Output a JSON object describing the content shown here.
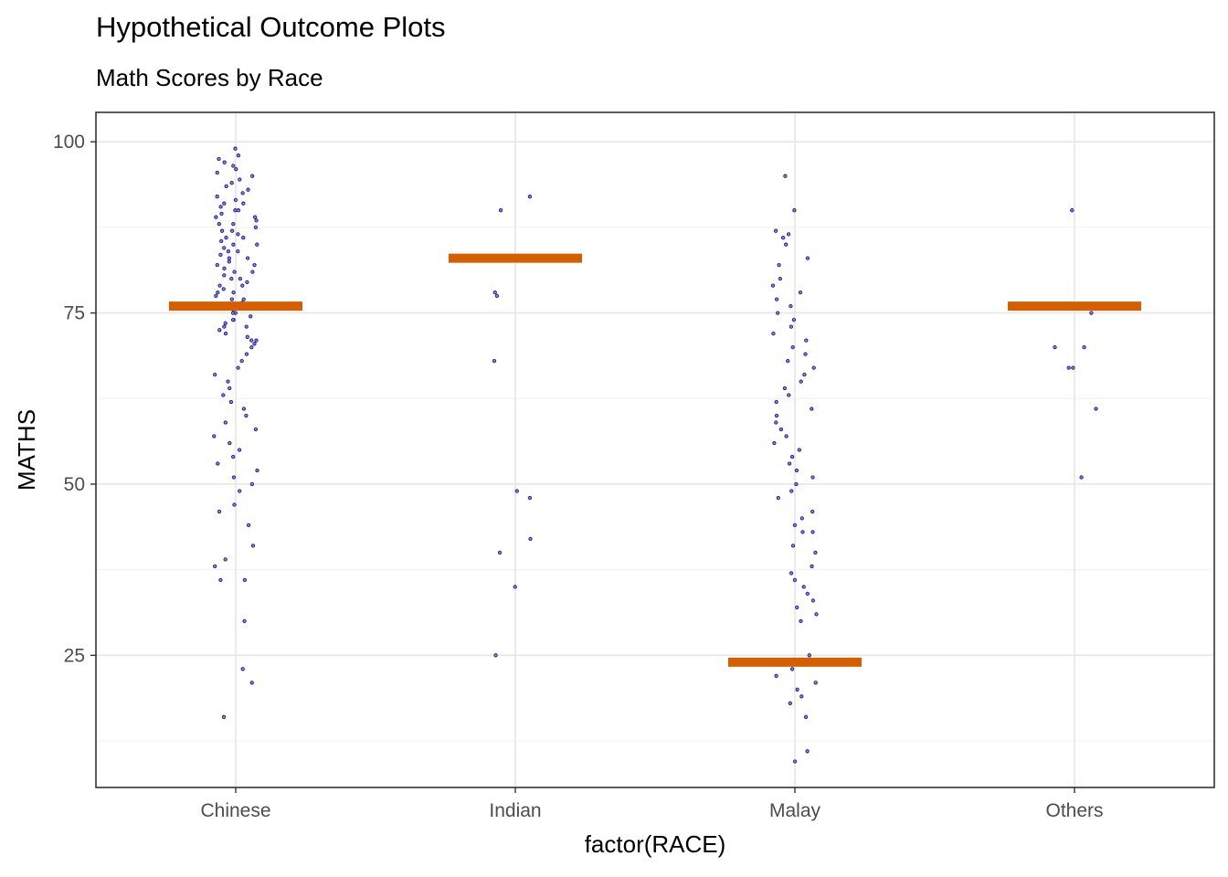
{
  "chart_data": {
    "type": "scatter",
    "title": "Hypothetical Outcome Plots",
    "subtitle": "Math Scores by Race",
    "xlabel": "factor(RACE)",
    "ylabel": "MATHS",
    "categories": [
      "Chinese",
      "Indian",
      "Malay",
      "Others"
    ],
    "ylim": [
      5.7,
      104.3
    ],
    "yticks": [
      25,
      50,
      75,
      100
    ],
    "grid": true,
    "legend": "none",
    "point_color": "#1a1a8c",
    "hop_color": "#d55e00",
    "hop_values": [
      76,
      83,
      24,
      76
    ],
    "points": {
      "Chinese": [
        99,
        98,
        97.5,
        97,
        96.5,
        96,
        95.5,
        95,
        94.5,
        94,
        93.5,
        93,
        92.5,
        92,
        91.5,
        91,
        91,
        90.5,
        90,
        90,
        89.5,
        89,
        89,
        88.5,
        88,
        88,
        87.5,
        87,
        87,
        86.5,
        86,
        86,
        85.5,
        85,
        85,
        84.5,
        84,
        84,
        83.5,
        83,
        83,
        82.5,
        82,
        82,
        81.5,
        81,
        81,
        80.5,
        80,
        80,
        79.5,
        79,
        79,
        78.5,
        78,
        78,
        77.5,
        77,
        77,
        76.5,
        76,
        76,
        75.5,
        75,
        75,
        74.5,
        74,
        74,
        73.5,
        73,
        73,
        72.5,
        72,
        71.5,
        71,
        71,
        70.5,
        70,
        69,
        68,
        67,
        66,
        65,
        64,
        63,
        62,
        61,
        60,
        59,
        58,
        57,
        56,
        55,
        54,
        53,
        52,
        51,
        50,
        49,
        47,
        46,
        44,
        41,
        39,
        38,
        36,
        36,
        30,
        23,
        21,
        16
      ],
      "Indian": [
        92,
        90,
        78,
        77.5,
        68,
        49,
        48,
        42,
        40,
        35,
        25
      ],
      "Malay": [
        95,
        90,
        87,
        86.5,
        86,
        85,
        83,
        82,
        80,
        79,
        78,
        77,
        76,
        75,
        74,
        73,
        72,
        71,
        70,
        69,
        68,
        67,
        66,
        65,
        64,
        63,
        62,
        61,
        60,
        59,
        58,
        57,
        56,
        55,
        54,
        53,
        52,
        51,
        50,
        49,
        48,
        46,
        45,
        44,
        43,
        43,
        41,
        40,
        38,
        37,
        36,
        35,
        34,
        33,
        32,
        31,
        30,
        25,
        23,
        22,
        21,
        20,
        19,
        18,
        16,
        11,
        9.5
      ],
      "Others": [
        90,
        75,
        70,
        70,
        67,
        67,
        61,
        51
      ]
    }
  }
}
